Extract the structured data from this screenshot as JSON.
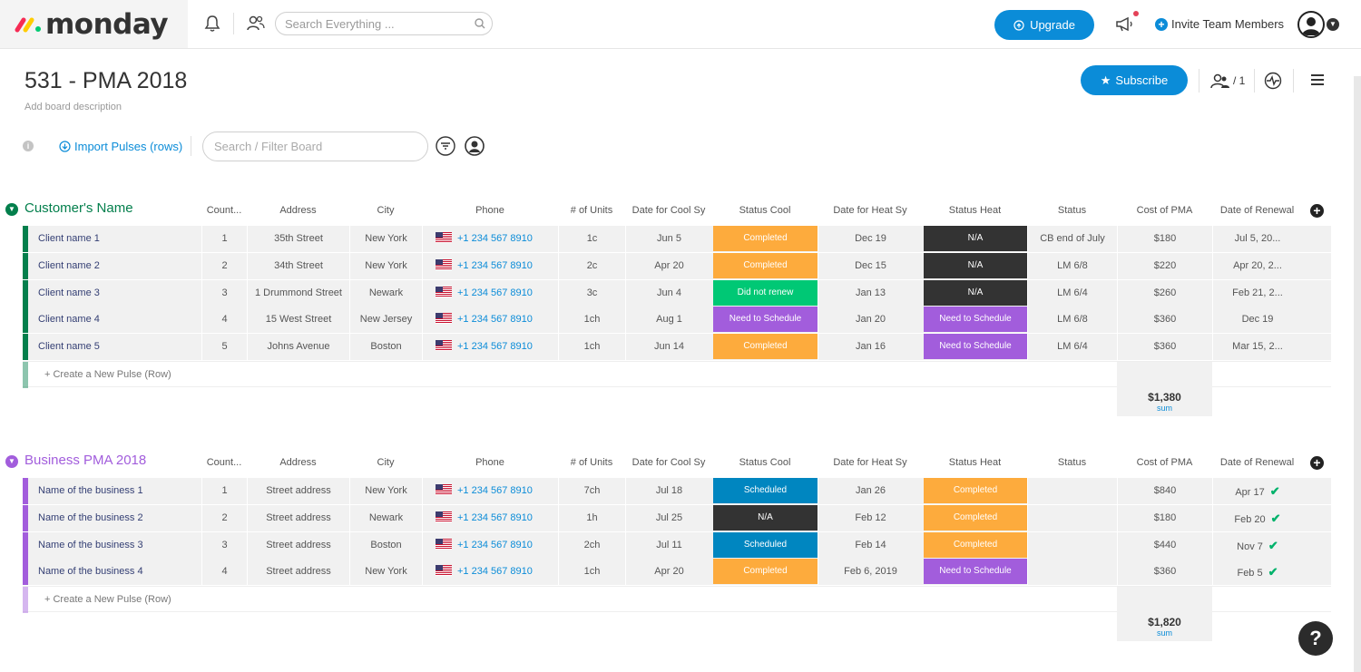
{
  "app": {
    "name": "monday"
  },
  "topbar": {
    "search_placeholder": "Search Everything ...",
    "upgrade_label": "Upgrade",
    "invite_label": "Invite Team Members",
    "icons": [
      "bell-icon",
      "people-icon",
      "search-icon",
      "megaphone-icon",
      "avatar"
    ]
  },
  "board": {
    "title": "531 - PMA 2018",
    "description_placeholder": "Add board description",
    "subscribe_label": "Subscribe",
    "members_count": "/ 1",
    "import_label": "Import Pulses (rows)",
    "filter_placeholder": "Search / Filter Board"
  },
  "columns": [
    "Count...",
    "Address",
    "City",
    "Phone",
    "# of Units",
    "Date for Cool Sy",
    "Status Cool",
    "Date for Heat Sy",
    "Status Heat",
    "Status",
    "Cost of PMA",
    "Date of Renewal"
  ],
  "colors": {
    "green_group": "#037f4c",
    "purple_group": "#a25ddc",
    "orange": "#fdab3d",
    "green": "#00c875",
    "purple": "#a25ddc",
    "dark": "#333333",
    "blue": "#0086c0",
    "accent": "#0b8cd8"
  },
  "groups": [
    {
      "title": "Customer's Name",
      "color": "#037f4c",
      "create_label": "+ Create a New Pulse (Row)",
      "sum": "$1,380",
      "sum_label": "sum",
      "rows": [
        {
          "name": "Client name 1",
          "count": "1",
          "address": "35th Street",
          "city": "New York",
          "phone": "+1 234 567 8910",
          "units": "1c",
          "cool_date": "Jun 5",
          "cool_status": "Completed",
          "cool_color": "#fdab3d",
          "heat_date": "Dec 19",
          "heat_status": "N/A",
          "heat_color": "#333333",
          "status": "CB end of July",
          "cost": "$180",
          "renewal": "Jul 5, 20...",
          "check": ""
        },
        {
          "name": "Client name 2",
          "count": "2",
          "address": "34th Street",
          "city": "New York",
          "phone": "+1 234 567 8910",
          "units": "2c",
          "cool_date": "Apr 20",
          "cool_status": "Completed",
          "cool_color": "#fdab3d",
          "heat_date": "Dec 15",
          "heat_status": "N/A",
          "heat_color": "#333333",
          "status": "LM 6/8",
          "cost": "$220",
          "renewal": "Apr 20, 2...",
          "check": ""
        },
        {
          "name": "Client name 3",
          "count": "3",
          "address": "1 Drummond Street",
          "city": "Newark",
          "phone": "+1 234 567 8910",
          "units": "3c",
          "cool_date": "Jun 4",
          "cool_status": "Did not renew",
          "cool_color": "#00c875",
          "heat_date": "Jan 13",
          "heat_status": "N/A",
          "heat_color": "#333333",
          "status": "LM 6/4",
          "cost": "$260",
          "renewal": "Feb 21, 2...",
          "check": ""
        },
        {
          "name": "Client name 4",
          "count": "4",
          "address": "15 West Street",
          "city": "New Jersey",
          "phone": "+1 234 567 8910",
          "units": "1ch",
          "cool_date": "Aug 1",
          "cool_status": "Need to Schedule",
          "cool_color": "#a25ddc",
          "heat_date": "Jan 20",
          "heat_status": "Need to Schedule",
          "heat_color": "#a25ddc",
          "status": "LM 6/8",
          "cost": "$360",
          "renewal": "Dec 19",
          "check": ""
        },
        {
          "name": "Client name 5",
          "count": "5",
          "address": "Johns Avenue",
          "city": "Boston",
          "phone": "+1 234 567 8910",
          "units": "1ch",
          "cool_date": "Jun 14",
          "cool_status": "Completed",
          "cool_color": "#fdab3d",
          "heat_date": "Jan 16",
          "heat_status": "Need to Schedule",
          "heat_color": "#a25ddc",
          "status": "LM 6/4",
          "cost": "$360",
          "renewal": "Mar 15, 2...",
          "check": ""
        }
      ]
    },
    {
      "title": "Business PMA 2018",
      "color": "#a25ddc",
      "create_label": "+ Create a New Pulse (Row)",
      "sum": "$1,820",
      "sum_label": "sum",
      "rows": [
        {
          "name": "Name of the business 1",
          "count": "1",
          "address": "Street address",
          "city": "New York",
          "phone": "+1 234 567 8910",
          "units": "7ch",
          "cool_date": "Jul 18",
          "cool_status": "Scheduled",
          "cool_color": "#0086c0",
          "heat_date": "Jan 26",
          "heat_status": "Completed",
          "heat_color": "#fdab3d",
          "status": "",
          "cost": "$840",
          "renewal": "Apr 17",
          "check": "✔"
        },
        {
          "name": "Name of the business 2",
          "count": "2",
          "address": "Street address",
          "city": "Newark",
          "phone": "+1 234 567 8910",
          "units": "1h",
          "cool_date": "Jul 25",
          "cool_status": "N/A",
          "cool_color": "#333333",
          "heat_date": "Feb 12",
          "heat_status": "Completed",
          "heat_color": "#fdab3d",
          "status": "",
          "cost": "$180",
          "renewal": "Feb 20",
          "check": "✔"
        },
        {
          "name": "Name of the business 3",
          "count": "3",
          "address": "Street address",
          "city": "Boston",
          "phone": "+1 234 567 8910",
          "units": "2ch",
          "cool_date": "Jul 11",
          "cool_status": "Scheduled",
          "cool_color": "#0086c0",
          "heat_date": "Feb 14",
          "heat_status": "Completed",
          "heat_color": "#fdab3d",
          "status": "",
          "cost": "$440",
          "renewal": "Nov 7",
          "check": "✔"
        },
        {
          "name": "Name of the business 4",
          "count": "4",
          "address": "Street address",
          "city": "New York",
          "phone": "+1 234 567 8910",
          "units": "1ch",
          "cool_date": "Apr 20",
          "cool_status": "Completed",
          "cool_color": "#fdab3d",
          "heat_date": "Feb 6, 2019",
          "heat_status": "Need to Schedule",
          "heat_color": "#a25ddc",
          "status": "",
          "cost": "$360",
          "renewal": "Feb 5",
          "check": "✔"
        }
      ]
    }
  ],
  "help_label": "?"
}
